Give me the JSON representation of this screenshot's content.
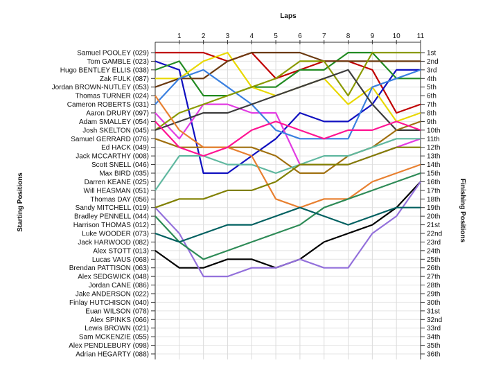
{
  "chart_data": {
    "type": "line",
    "title": "Laps",
    "ylabel_left": "Starting Positions",
    "ylabel_right": "Finishing Positions",
    "x_ticks": [
      1,
      2,
      3,
      4,
      5,
      6,
      7,
      8,
      9,
      10,
      11
    ],
    "x_range": [
      0,
      11
    ],
    "y_range": [
      1,
      36
    ],
    "grid": true,
    "colors": [
      "#c00000",
      "#1010c0",
      "#228b22",
      "#e8d800",
      "#6b3a10",
      "#e23ce2",
      "#3a80e0",
      "#8a9a00",
      "#3c3c3c",
      "#a07010",
      "#60b8a0",
      "#e88030",
      "#000000",
      "#9370db",
      "#2e8b57",
      "#ff1493",
      "#808000",
      "#006060"
    ],
    "starting_labels": [
      "Samuel POOLEY (029)",
      "Tom GAMBLE (023)",
      "Hugo BENTLEY ELLIS (038)",
      "Zak FULK (087)",
      "Jordan BROWN-NUTLEY (053)",
      "Thomas TURNER (024)",
      "Cameron ROBERTS (031)",
      "Aaron DRURY (097)",
      "Adam SMALLEY (054)",
      "Josh SKELTON (045)",
      "Samuel GERRARD (076)",
      "Ed HACK (049)",
      "Jack MCCARTHY (008)",
      "Scott SNELL (046)",
      "Max BIRD (035)",
      "Darren KEANE (025)",
      "Will HEASMAN (051)",
      "Thomas DAY (056)",
      "Sandy MITCHELL (019)",
      "Bradley PENNELL (044)",
      "Harrison THOMAS (012)",
      "Luke WOODER (073)",
      "Jack HARWOOD (082)",
      "Alex STOTT (013)",
      "Lucas VAUS (068)",
      "Brendan PATTISON (063)",
      "Alex SEDGWICK (048)",
      "Jordan CANE (086)",
      "Jake ANDERSON (022)",
      "Finlay HUTCHISON (040)",
      "Euan WILSON (078)",
      "Alex SPINKS (066)",
      "Lewis BROWN (021)",
      "Sam MCKENZIE (055)",
      "Alex PENDLEBURY (098)",
      "Adrian HEGARTY (088)"
    ],
    "finishing_labels": [
      "1st",
      "2nd",
      "3rd",
      "4th",
      "5th",
      "6th",
      "7th",
      "8th",
      "9th",
      "10th",
      "11th",
      "12th",
      "13th",
      "14th",
      "15th",
      "16th",
      "17th",
      "18th",
      "19th",
      "20th",
      "21st",
      "22nd",
      "23rd",
      "24th",
      "25th",
      "26th",
      "27th",
      "28th",
      "29th",
      "30th",
      "31st",
      "32nd",
      "33rd",
      "34th",
      "35th",
      "36th"
    ],
    "series": [
      {
        "color": "#c00000",
        "values": [
          1,
          1,
          1,
          2,
          1,
          4,
          3,
          2,
          2,
          3,
          8,
          7
        ]
      },
      {
        "color": "#1010c0",
        "values": [
          2,
          3,
          15,
          15,
          13,
          11,
          8,
          9,
          9,
          7,
          3,
          3
        ]
      },
      {
        "color": "#228b22",
        "values": [
          3,
          2,
          6,
          6,
          5,
          5,
          3,
          3,
          1,
          1,
          4,
          4
        ]
      },
      {
        "color": "#e8d800",
        "values": [
          4,
          4,
          2,
          1,
          5,
          6,
          5,
          4,
          7,
          5,
          9,
          8
        ]
      },
      {
        "color": "#6b3a10",
        "values": [
          5,
          4,
          4,
          2,
          1,
          1,
          1,
          2,
          2,
          2,
          2,
          2
        ]
      },
      {
        "color": "#e23ce2",
        "values": [
          8,
          11,
          7,
          7,
          8,
          8,
          14,
          14,
          14,
          13,
          12,
          11
        ]
      },
      {
        "color": "#3a80e0",
        "values": [
          7,
          4,
          3,
          5,
          7,
          10,
          11,
          11,
          11,
          5,
          4,
          3
        ]
      },
      {
        "color": "#8a9a00",
        "values": [
          10,
          8,
          7,
          6,
          5,
          4,
          2,
          2,
          6,
          1,
          1,
          1
        ]
      },
      {
        "color": "#3c3c3c",
        "values": [
          10,
          9,
          8,
          8,
          7,
          6,
          5,
          4,
          3,
          7,
          10,
          10
        ]
      },
      {
        "color": "#a07010",
        "values": [
          11,
          12,
          12,
          12,
          12,
          13,
          15,
          15,
          13,
          12,
          10,
          9
        ]
      },
      {
        "color": "#60b8a0",
        "values": [
          17,
          13,
          13,
          14,
          14,
          15,
          14,
          13,
          13,
          12,
          11,
          11
        ]
      },
      {
        "color": "#e88030",
        "values": [
          6,
          10,
          12,
          12,
          13,
          18,
          19,
          18,
          18,
          16,
          15,
          14
        ]
      },
      {
        "color": "#000000",
        "values": [
          24,
          26,
          26,
          25,
          25,
          26,
          25,
          23,
          22,
          21,
          19,
          16
        ]
      },
      {
        "color": "#9370db",
        "values": [
          19,
          22,
          27,
          27,
          26,
          26,
          25,
          26,
          26,
          22,
          20,
          16
        ]
      },
      {
        "color": "#2e8b57",
        "values": [
          20,
          23,
          25,
          24,
          23,
          22,
          21,
          19,
          18,
          17,
          16,
          15
        ]
      },
      {
        "color": "#ff1493",
        "values": [
          9,
          12,
          13,
          12,
          10,
          9,
          10,
          11,
          10,
          10,
          9,
          10
        ]
      },
      {
        "color": "#808000",
        "values": [
          19,
          18,
          18,
          17,
          17,
          16,
          14,
          14,
          14,
          13,
          12,
          12
        ]
      },
      {
        "color": "#006060",
        "values": [
          22,
          23,
          22,
          21,
          21,
          20,
          19,
          20,
          21,
          20,
          19,
          19
        ]
      }
    ]
  }
}
